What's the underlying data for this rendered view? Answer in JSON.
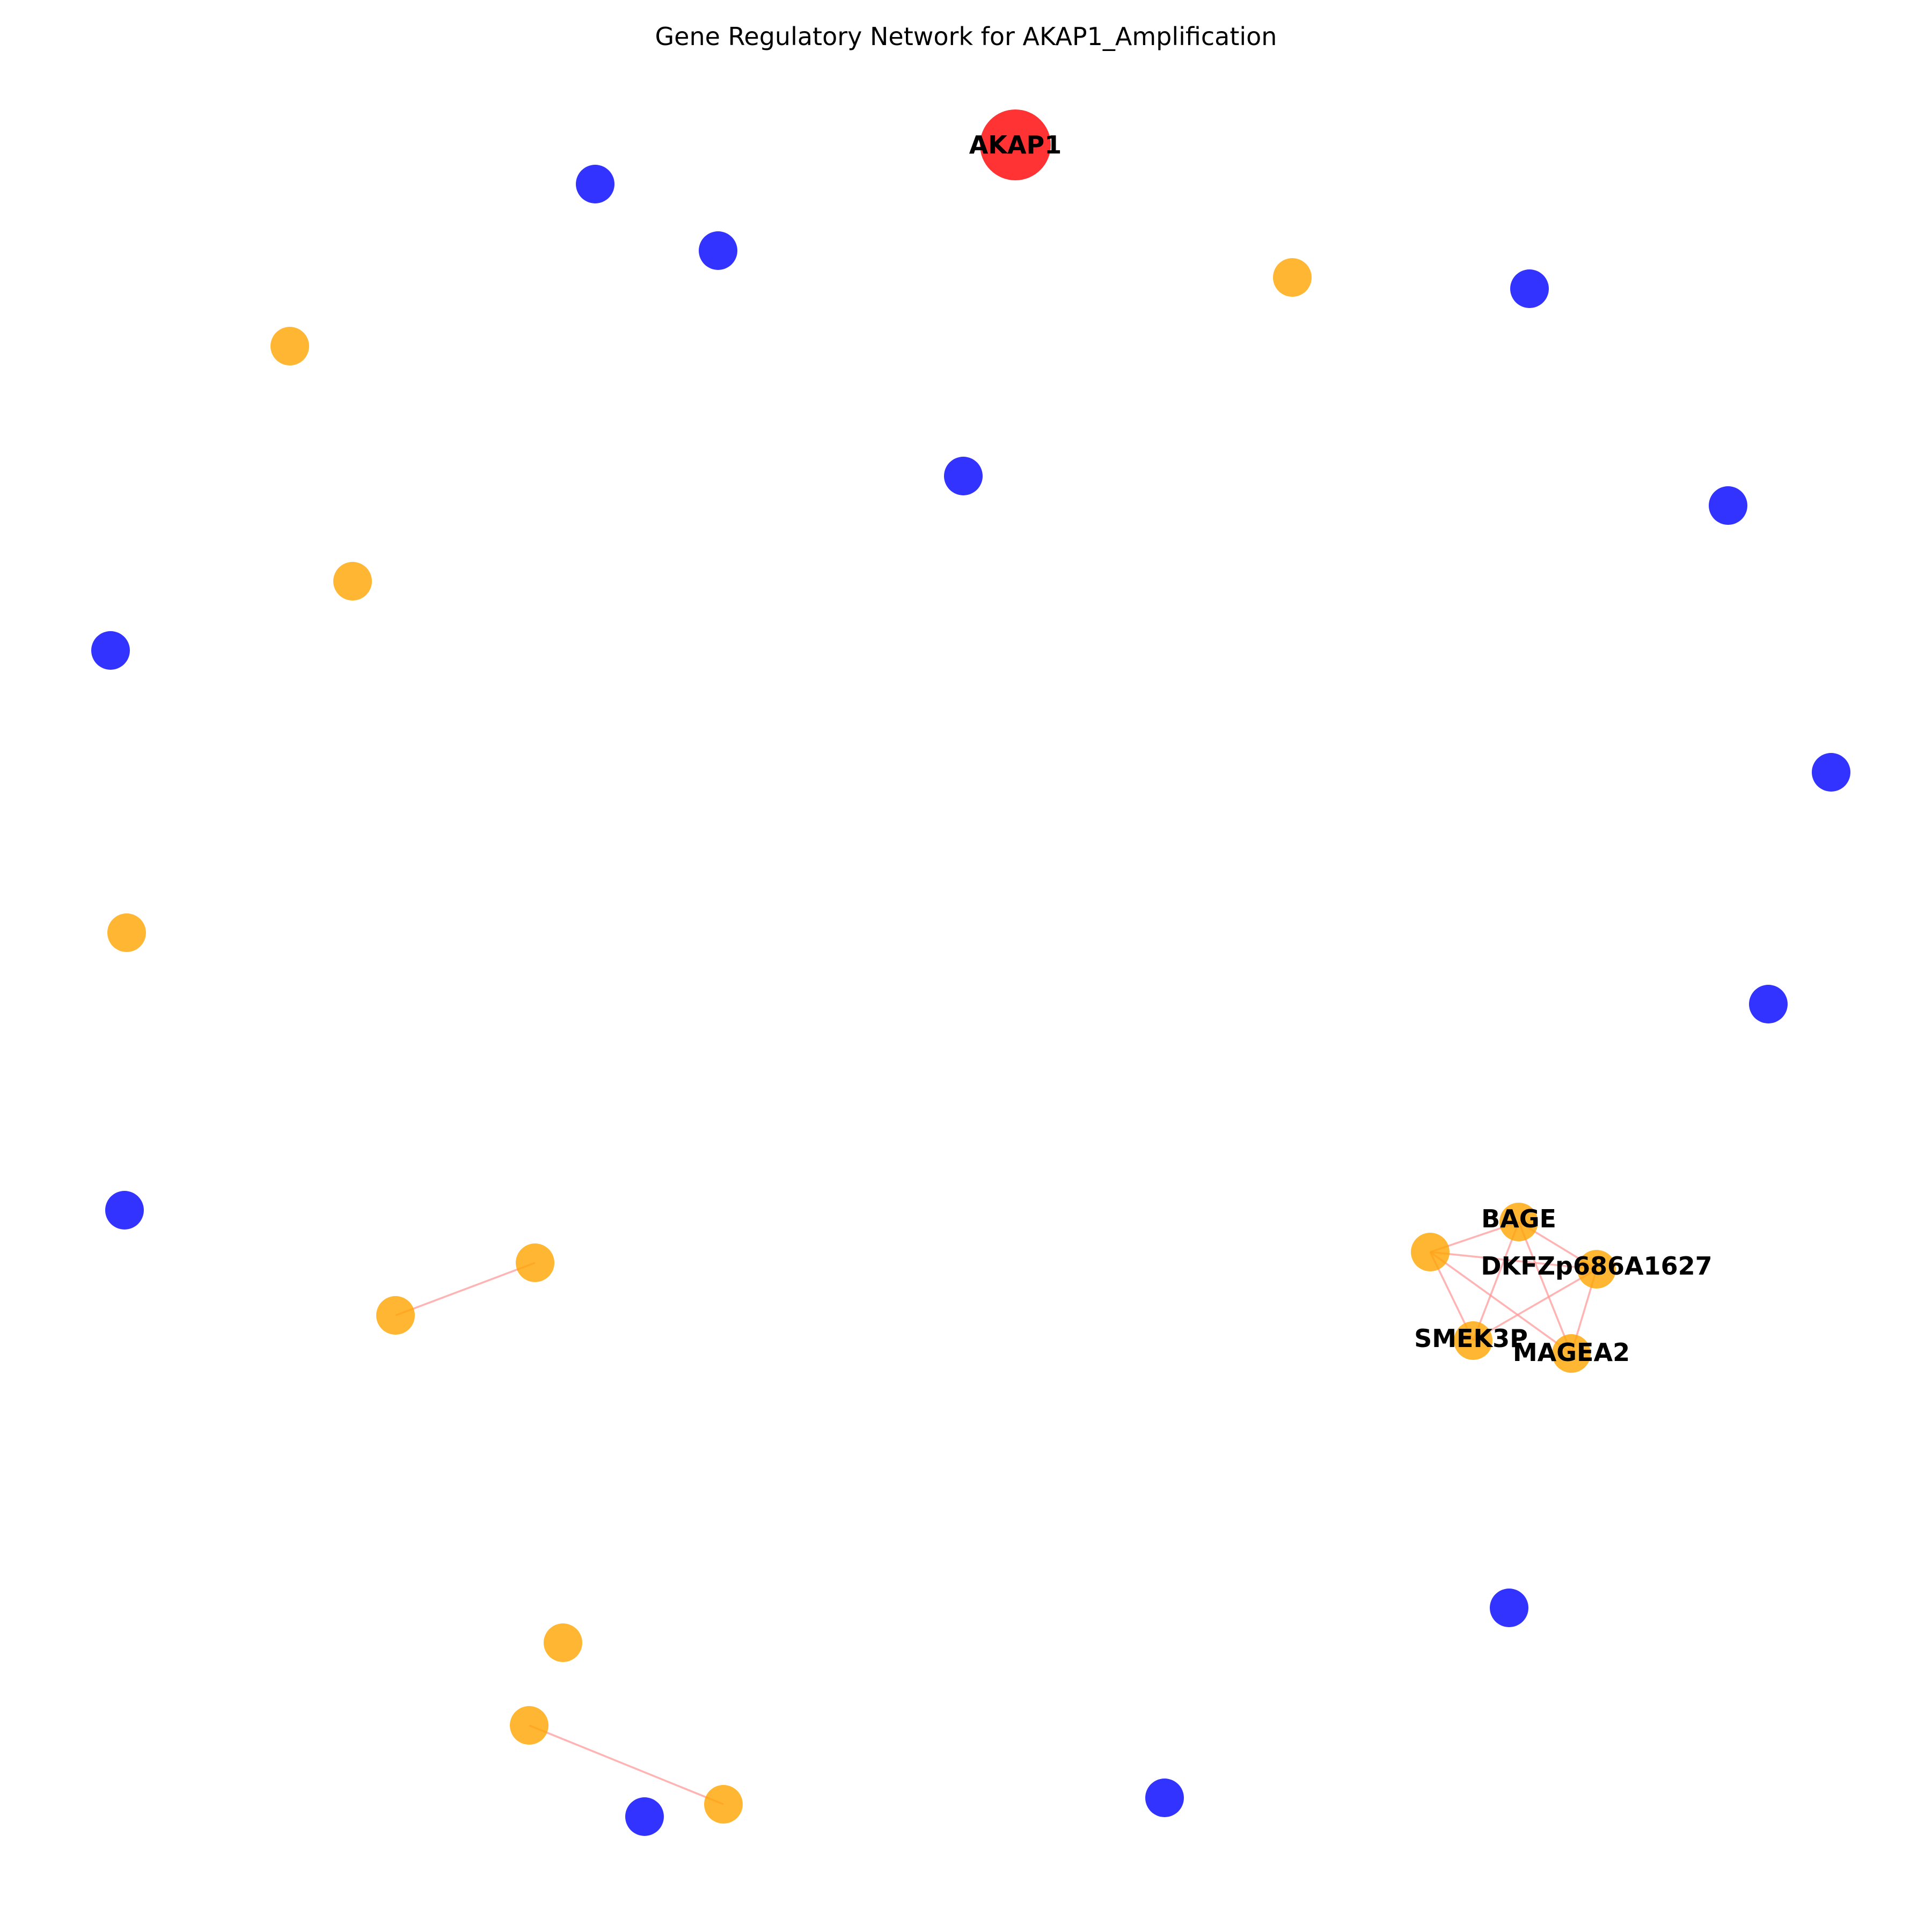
{
  "title": "Gene Regulatory Network for AKAP1_Amplification",
  "colors": {
    "target": "#ff0000",
    "orange": "#ffa500",
    "blue": "#0000ff",
    "edge": "#ff9999"
  },
  "nodes": [
    {
      "id": "AKAP1",
      "label": "AKAP1",
      "group": "target"
    },
    {
      "id": "BAGE",
      "label": "BAGE",
      "group": "orange"
    },
    {
      "id": "DKFZp686A1627",
      "label": "DKFZp686A1627",
      "group": "orange"
    },
    {
      "id": "SMEK3P",
      "label": "SMEK3P",
      "group": "orange"
    },
    {
      "id": "MAGEA2",
      "label": "MAGEA2",
      "group": "orange"
    },
    {
      "id": "o1",
      "label": "",
      "group": "orange"
    },
    {
      "id": "o2",
      "label": "",
      "group": "orange"
    },
    {
      "id": "o3",
      "label": "",
      "group": "orange"
    },
    {
      "id": "o4",
      "label": "",
      "group": "orange"
    },
    {
      "id": "o5",
      "label": "",
      "group": "orange"
    },
    {
      "id": "o6",
      "label": "",
      "group": "orange"
    },
    {
      "id": "o7",
      "label": "",
      "group": "orange"
    },
    {
      "id": "o8",
      "label": "",
      "group": "orange"
    },
    {
      "id": "o9",
      "label": "",
      "group": "orange"
    },
    {
      "id": "o10",
      "label": "",
      "group": "orange"
    },
    {
      "id": "b1",
      "label": "",
      "group": "blue"
    },
    {
      "id": "b2",
      "label": "",
      "group": "blue"
    },
    {
      "id": "b3",
      "label": "",
      "group": "blue"
    },
    {
      "id": "b4",
      "label": "",
      "group": "blue"
    },
    {
      "id": "b5",
      "label": "",
      "group": "blue"
    },
    {
      "id": "b6",
      "label": "",
      "group": "blue"
    },
    {
      "id": "b7",
      "label": "",
      "group": "blue"
    },
    {
      "id": "b8",
      "label": "",
      "group": "blue"
    },
    {
      "id": "b9",
      "label": "",
      "group": "blue"
    },
    {
      "id": "b10",
      "label": "",
      "group": "blue"
    },
    {
      "id": "b11",
      "label": "",
      "group": "blue"
    },
    {
      "id": "b12",
      "label": "",
      "group": "blue"
    }
  ],
  "edges": [
    [
      "o1",
      "BAGE"
    ],
    [
      "o1",
      "DKFZp686A1627"
    ],
    [
      "o1",
      "SMEK3P"
    ],
    [
      "o1",
      "MAGEA2"
    ],
    [
      "BAGE",
      "DKFZp686A1627"
    ],
    [
      "BAGE",
      "SMEK3P"
    ],
    [
      "BAGE",
      "MAGEA2"
    ],
    [
      "DKFZp686A1627",
      "SMEK3P"
    ],
    [
      "DKFZp686A1627",
      "MAGEA2"
    ],
    [
      "o6",
      "o7"
    ],
    [
      "o9",
      "o10"
    ]
  ]
}
